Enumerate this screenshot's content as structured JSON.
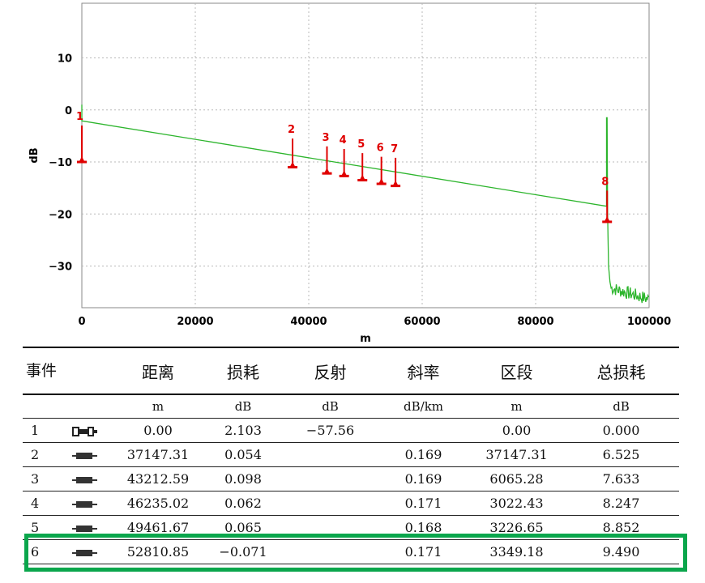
{
  "chart_data": {
    "type": "line",
    "xlabel": "m",
    "ylabel": "dB",
    "xlim": [
      0,
      100000
    ],
    "ylim": [
      -38,
      12
    ],
    "xticks": [
      0,
      20000,
      40000,
      60000,
      80000,
      100000
    ],
    "xtick_labels": [
      "0",
      "20000",
      "40000",
      "60000",
      "80000",
      "100000"
    ],
    "yticks": [
      10,
      0,
      -10,
      -20,
      -30
    ],
    "ytick_labels": [
      "10",
      "0",
      "−10",
      "−20",
      "−30"
    ],
    "grid": true,
    "trace_color": "#2db52d",
    "event_color": "#e00000",
    "trace": {
      "start": [
        0,
        -2.1
      ],
      "end": [
        92500,
        -18.5
      ],
      "reflection_peak": [
        92600,
        -1.5
      ],
      "noise_floor": [
        -35,
        -38
      ]
    },
    "events": [
      {
        "label": "1",
        "x": 0,
        "y": -10,
        "top": -3
      },
      {
        "label": "2",
        "x": 37147,
        "y": -11,
        "top": -5.5
      },
      {
        "label": "3",
        "x": 43212,
        "y": -12.2,
        "top": -7
      },
      {
        "label": "4",
        "x": 46235,
        "y": -12.7,
        "top": -7.5
      },
      {
        "label": "5",
        "x": 49461,
        "y": -13.5,
        "top": -8.3
      },
      {
        "label": "6",
        "x": 52810,
        "y": -14.2,
        "top": -9
      },
      {
        "label": "7",
        "x": 55300,
        "y": -14.6,
        "top": -9.2
      },
      {
        "label": "8",
        "x": 92600,
        "y": -21.5,
        "top": -15.5
      }
    ]
  },
  "table": {
    "headers": {
      "event": "事件",
      "distance": "距离",
      "loss": "损耗",
      "reflection": "反射",
      "slope": "斜率",
      "section": "区段",
      "total_loss": "总损耗"
    },
    "units": {
      "distance": "m",
      "loss": "dB",
      "reflection": "dB",
      "slope": "dB/km",
      "section": "m",
      "total_loss": "dB"
    },
    "rows": [
      {
        "no": "1",
        "icon": "launch-connector-icon",
        "distance": "0.00",
        "loss": "2.103",
        "reflection": "−57.56",
        "slope": "",
        "section": "0.00",
        "total_loss": "0.000"
      },
      {
        "no": "2",
        "icon": "splice-event-icon",
        "distance": "37147.31",
        "loss": "0.054",
        "reflection": "",
        "slope": "0.169",
        "section": "37147.31",
        "total_loss": "6.525"
      },
      {
        "no": "3",
        "icon": "splice-event-icon",
        "distance": "43212.59",
        "loss": "0.098",
        "reflection": "",
        "slope": "0.169",
        "section": "6065.28",
        "total_loss": "7.633"
      },
      {
        "no": "4",
        "icon": "splice-event-icon",
        "distance": "46235.02",
        "loss": "0.062",
        "reflection": "",
        "slope": "0.171",
        "section": "3022.43",
        "total_loss": "8.247"
      },
      {
        "no": "5",
        "icon": "splice-event-icon",
        "distance": "49461.67",
        "loss": "0.065",
        "reflection": "",
        "slope": "0.168",
        "section": "3226.65",
        "total_loss": "8.852"
      },
      {
        "no": "6",
        "icon": "splice-event-icon",
        "distance": "52810.85",
        "loss": "−0.071",
        "reflection": "",
        "slope": "0.171",
        "section": "3349.18",
        "total_loss": "9.490"
      }
    ],
    "highlight_color": "#0aa64c"
  }
}
